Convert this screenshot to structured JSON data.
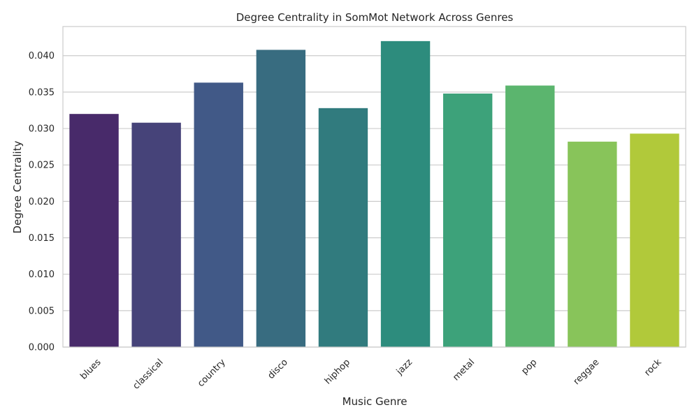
{
  "chart_data": {
    "type": "bar",
    "title": "Degree Centrality in SomMot Network Across Genres",
    "xlabel": "Music Genre",
    "ylabel": "Degree Centrality",
    "categories": [
      "blues",
      "classical",
      "country",
      "disco",
      "hiphop",
      "jazz",
      "metal",
      "pop",
      "reggae",
      "rock"
    ],
    "values": [
      0.032,
      0.0308,
      0.0363,
      0.0408,
      0.0328,
      0.042,
      0.0348,
      0.0359,
      0.0282,
      0.0293
    ],
    "colors": [
      "#482a6a",
      "#464379",
      "#415987",
      "#386c80",
      "#317b7e",
      "#2d8c7d",
      "#3da27a",
      "#5bb56e",
      "#88c45a",
      "#b1c93a"
    ],
    "ylim": [
      0,
      0.044
    ],
    "yticks": [
      "0.000",
      "0.005",
      "0.010",
      "0.015",
      "0.020",
      "0.025",
      "0.030",
      "0.035",
      "0.040"
    ],
    "grid": "horizontal",
    "legend": "none"
  }
}
